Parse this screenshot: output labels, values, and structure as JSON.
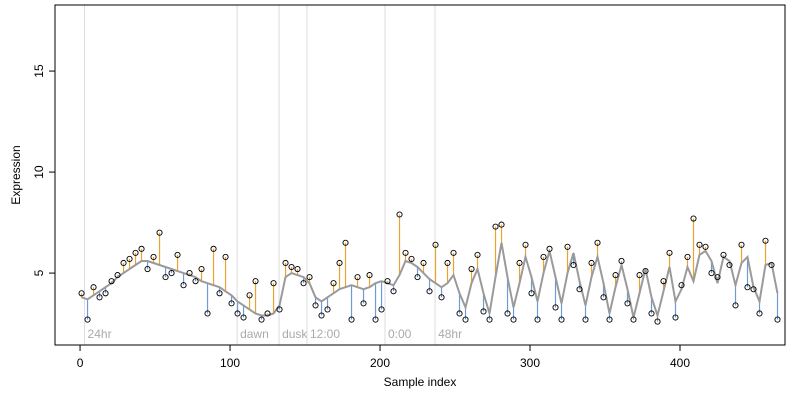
{
  "chart_data": {
    "type": "residual-scatter",
    "x_label": "Sample index",
    "y_label": "Expression",
    "xlim": [
      -16.7,
      470
    ],
    "ylim": [
      1.44,
      18.27
    ],
    "xticks": [
      0,
      100,
      200,
      300,
      400
    ],
    "yticks": [
      5,
      10,
      15
    ],
    "colors": {
      "above": "#eba32f",
      "below": "#6f9ad8",
      "fit": "#9a9a9a",
      "point": "#000000",
      "marker_line": "#dddddd",
      "marker_text": "#aaaaaa"
    },
    "markers": [
      {
        "x": 3,
        "label": "24hr"
      },
      {
        "x": 104.7,
        "label": "dawn"
      },
      {
        "x": 132.7,
        "label": "dusk"
      },
      {
        "x": 151.3,
        "label": "12:00"
      },
      {
        "x": 203.3,
        "label": "0:00"
      },
      {
        "x": 236.7,
        "label": "48hr"
      }
    ],
    "x": [
      1,
      5,
      9,
      13,
      17,
      21,
      25,
      29,
      33,
      37,
      41,
      45,
      49,
      53,
      57,
      61,
      65,
      69,
      73,
      77,
      81,
      85,
      89,
      93,
      97,
      101,
      105,
      109,
      113,
      117,
      121,
      125,
      129,
      133,
      137,
      141,
      145,
      149,
      153,
      157,
      161,
      165,
      169,
      173,
      177,
      181,
      185,
      189,
      193,
      197,
      201,
      205,
      209,
      213,
      217,
      221,
      225,
      229,
      233,
      237,
      241,
      245,
      249,
      253,
      257,
      261,
      265,
      269,
      273,
      277,
      281,
      285,
      289,
      293,
      297,
      301,
      305,
      309,
      313,
      317,
      321,
      325,
      329,
      333,
      337,
      341,
      345,
      349,
      353,
      357,
      361,
      365,
      369,
      373,
      377,
      381,
      385,
      389,
      393,
      397,
      401,
      405,
      409,
      413,
      417,
      421,
      425,
      429,
      433,
      437,
      441,
      445,
      449,
      453,
      457,
      461,
      465
    ],
    "values": [
      4.0,
      2.7,
      4.3,
      3.8,
      4.0,
      4.6,
      4.9,
      5.5,
      5.7,
      6.0,
      6.2,
      5.2,
      5.8,
      7.0,
      4.8,
      5.0,
      5.9,
      4.4,
      5.0,
      4.6,
      5.2,
      3.0,
      6.2,
      4.0,
      5.8,
      3.5,
      3.0,
      2.8,
      3.9,
      4.6,
      2.7,
      3.0,
      4.5,
      3.2,
      5.5,
      5.3,
      5.2,
      4.5,
      4.8,
      3.4,
      2.9,
      3.2,
      4.5,
      5.5,
      6.5,
      2.7,
      4.8,
      3.5,
      4.9,
      2.7,
      3.2,
      4.6,
      4.1,
      7.9,
      6.0,
      5.7,
      4.8,
      5.5,
      4.1,
      6.4,
      3.8,
      5.5,
      6.0,
      3.0,
      2.7,
      5.2,
      5.9,
      3.1,
      2.7,
      7.3,
      7.4,
      3.0,
      2.7,
      5.5,
      6.4,
      4.0,
      2.7,
      5.8,
      6.2,
      3.3,
      2.7,
      6.3,
      5.4,
      4.2,
      2.7,
      5.5,
      6.5,
      3.8,
      2.7,
      4.9,
      5.6,
      3.5,
      2.7,
      4.9,
      5.1,
      3.0,
      2.6,
      4.6,
      6.0,
      2.8,
      4.4,
      5.8,
      7.7,
      6.4,
      6.3,
      5.0,
      4.8,
      5.9,
      5.4,
      3.4,
      6.4,
      4.3,
      4.2,
      3.0,
      6.6,
      5.4,
      2.7
    ],
    "fit_values": [
      3.8,
      3.7,
      3.9,
      4.1,
      4.3,
      4.5,
      4.8,
      5.0,
      5.2,
      5.4,
      5.6,
      5.6,
      5.5,
      5.4,
      5.3,
      5.2,
      5.1,
      5.0,
      4.9,
      4.8,
      4.6,
      4.5,
      4.4,
      4.3,
      4.1,
      3.9,
      3.6,
      3.4,
      3.2,
      3.0,
      2.9,
      2.9,
      3.0,
      3.4,
      4.8,
      5.0,
      4.9,
      4.8,
      4.5,
      3.8,
      3.6,
      3.8,
      4.0,
      4.2,
      4.3,
      4.4,
      4.3,
      4.2,
      4.3,
      4.5,
      4.6,
      4.5,
      4.4,
      4.9,
      5.6,
      5.5,
      5.3,
      5.0,
      4.7,
      4.5,
      4.3,
      4.5,
      4.9,
      4.0,
      3.3,
      4.5,
      5.2,
      4.0,
      3.0,
      4.8,
      6.5,
      4.8,
      3.3,
      4.5,
      5.8,
      4.8,
      3.6,
      5.0,
      6.1,
      4.8,
      3.5,
      5.0,
      6.0,
      4.6,
      3.4,
      4.8,
      5.8,
      4.5,
      3.0,
      4.3,
      5.4,
      4.2,
      2.8,
      4.0,
      5.2,
      3.8,
      2.9,
      4.1,
      5.3,
      3.6,
      4.2,
      5.3,
      4.6,
      5.9,
      6.1,
      5.6,
      4.5,
      5.8,
      5.6,
      4.4,
      5.5,
      5.8,
      4.3,
      3.6,
      5.4,
      5.5,
      4.0
    ]
  }
}
